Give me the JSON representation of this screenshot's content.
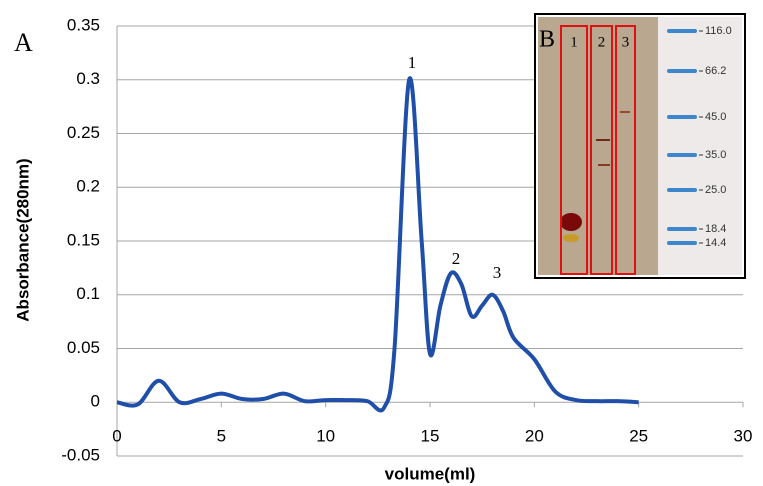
{
  "chart_data": {
    "type": "line",
    "panel_label": "A",
    "x_label": "volume(ml)",
    "y_label": "Absorbance(280nm)",
    "x": [
      0,
      1,
      2,
      3,
      4,
      5,
      6,
      7,
      8,
      9,
      10,
      11,
      12,
      12.8,
      13.3,
      14,
      14.6,
      15,
      15.5,
      16,
      16.5,
      17,
      17.5,
      18,
      18.5,
      19,
      20,
      21,
      22,
      23,
      24,
      25
    ],
    "series": [
      {
        "color": "#1f4fa8",
        "values": [
          0,
          -0.002,
          0.02,
          0,
          0.003,
          0.008,
          0.003,
          0.003,
          0.008,
          0.001,
          0.002,
          0.002,
          0.001,
          -0.005,
          0.05,
          0.3,
          0.15,
          0.045,
          0.09,
          0.12,
          0.11,
          0.08,
          0.09,
          0.1,
          0.085,
          0.06,
          0.04,
          0.01,
          0.002,
          0.001,
          0.001,
          0
        ]
      }
    ],
    "peak_labels": [
      "1",
      "2",
      "3"
    ],
    "xlim": [
      0,
      30
    ],
    "xticks": [
      0,
      5,
      10,
      15,
      20,
      25,
      30
    ],
    "ylim": [
      -0.05,
      0.35
    ],
    "yticks": [
      -0.05,
      0,
      0.05,
      0.1,
      0.15,
      0.2,
      0.25,
      0.3,
      0.35
    ],
    "grid": true,
    "inset": {
      "label": "B",
      "lanes": [
        "1",
        "2",
        "3"
      ],
      "markers": [
        "116.0",
        "66.2",
        "45.0",
        "35.0",
        "25.0",
        "18.4",
        "14.4"
      ]
    }
  }
}
